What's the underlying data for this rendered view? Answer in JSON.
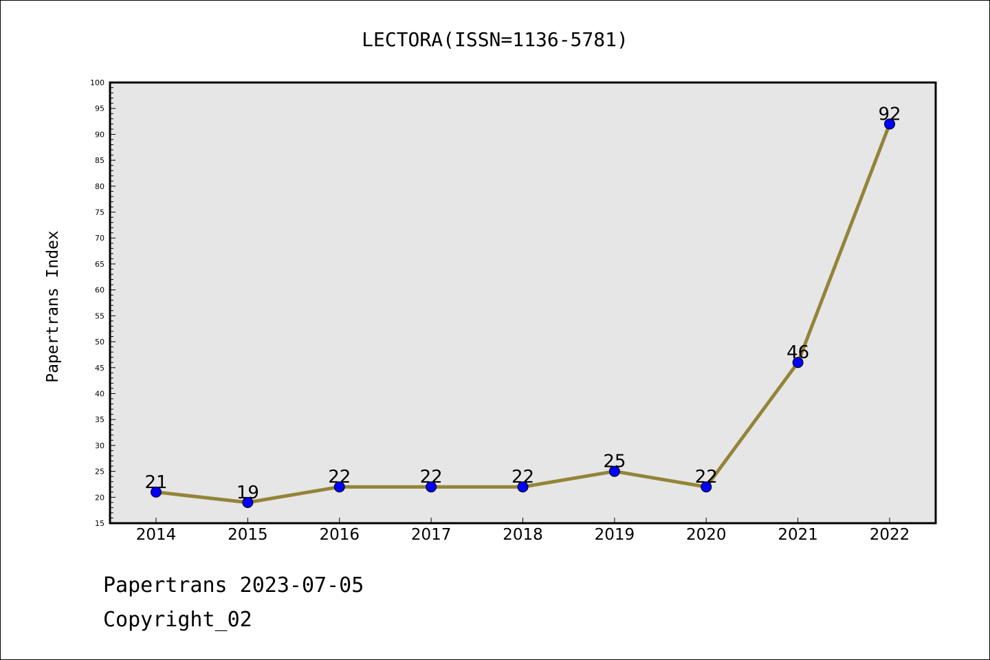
{
  "chart_data": {
    "type": "line",
    "title": "LECTORA(ISSN=1136-5781)",
    "ylabel": "Papertrans Index",
    "xlabel": "",
    "categories": [
      "2014",
      "2015",
      "2016",
      "2017",
      "2018",
      "2019",
      "2020",
      "2021",
      "2022"
    ],
    "series": [
      {
        "values": [
          21,
          19,
          22,
          22,
          22,
          25,
          22,
          46,
          92
        ]
      }
    ],
    "ylim": [
      15,
      100
    ],
    "yticks": [
      15,
      20,
      25,
      30,
      35,
      40,
      45,
      50,
      55,
      60,
      65,
      70,
      75,
      80,
      85,
      90,
      95,
      100
    ],
    "grid": false,
    "data_labels": true,
    "colors": {
      "line": "#948438",
      "marker": "#0000ff",
      "plot_background": "#e6e6e6"
    }
  },
  "footer": {
    "line1": "Papertrans 2023-07-05",
    "line2": "Copyright_02"
  }
}
